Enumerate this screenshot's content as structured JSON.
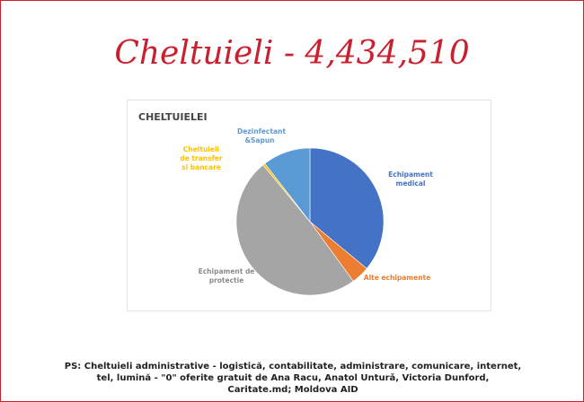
{
  "slide": {
    "title": "Cheltuieli - 4,434,510",
    "note": "PS: Cheltuieli administrative - logistică, contabilitate, administrare, comunicare, internet, tel, lumină - \"0\" oferite gratuit de Ana Racu, Anatol Unturǎ, Victoria Dunford, Caritate.md; Moldova AID"
  },
  "chart_data": {
    "type": "pie",
    "title": "CHELTUIELEI",
    "categories": [
      "Echipament medical",
      "Alte echipamente",
      "Echipament de protectie",
      "Cheltuieli de transfer si bancare",
      "Dezinfectant &Sapun"
    ],
    "values": [
      36,
      4,
      49,
      0.5,
      10.5
    ],
    "colors": [
      "#4472c4",
      "#ed7d31",
      "#a5a5a5",
      "#ffc000",
      "#5b9bd5"
    ]
  }
}
